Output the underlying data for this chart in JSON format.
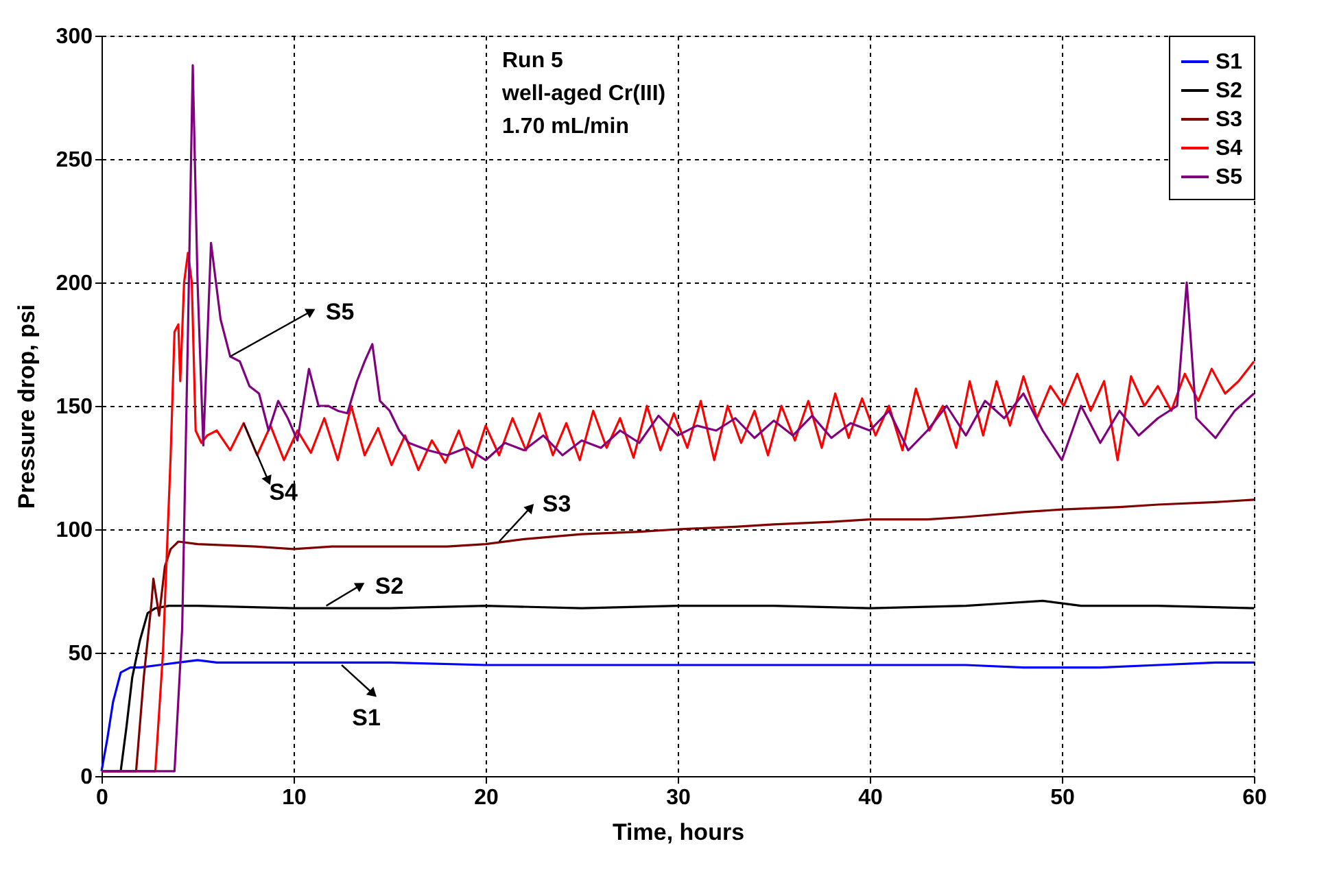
{
  "chart_data": {
    "type": "line",
    "xlabel": "Time, hours",
    "ylabel": "Pressure drop, psi",
    "xlim": [
      0,
      60
    ],
    "xticks": [
      0,
      10,
      20,
      30,
      40,
      50,
      60
    ],
    "ylim": [
      0,
      300
    ],
    "yticks": [
      0,
      50,
      100,
      150,
      200,
      250,
      300
    ],
    "grid": true,
    "legend": "top right",
    "marker": "none",
    "line_style": "solid",
    "annotations": [
      "Run 5",
      "well-aged Cr(III)",
      "1.70 mL/min",
      {
        "text": "S1",
        "x": 12.5,
        "y": 45
      },
      {
        "text": "S2",
        "x": 11.7,
        "y": 69
      },
      {
        "text": "S3",
        "x": 20.7,
        "y": 95
      },
      {
        "text": "S4",
        "x": 7.4,
        "y": 143
      },
      {
        "text": "S5",
        "x": 6.7,
        "y": 170
      }
    ],
    "series": [
      {
        "name": "S1",
        "color": "#0000ff",
        "x": [
          0,
          0.3,
          0.6,
          1.0,
          1.5,
          2,
          3,
          4,
          5,
          6,
          8,
          10,
          15,
          20,
          25,
          30,
          35,
          40,
          45,
          48,
          50,
          52,
          55,
          58,
          60
        ],
        "values": [
          2,
          15,
          30,
          42,
          44,
          44,
          45,
          46,
          47,
          46,
          46,
          46,
          46,
          45,
          45,
          45,
          45,
          45,
          45,
          44,
          44,
          44,
          45,
          46,
          46
        ]
      },
      {
        "name": "S2",
        "color": "#000000",
        "x": [
          0,
          1.0,
          1.3,
          1.6,
          2.0,
          2.4,
          2.8,
          3.5,
          5,
          10,
          15,
          20,
          25,
          30,
          35,
          40,
          45,
          47,
          49,
          51,
          55,
          60
        ],
        "values": [
          2,
          2,
          20,
          40,
          55,
          66,
          68,
          69,
          69,
          68,
          68,
          69,
          68,
          69,
          69,
          68,
          69,
          70,
          71,
          69,
          69,
          68
        ]
      },
      {
        "name": "S3",
        "color": "#800000",
        "x": [
          0,
          1.8,
          2.2,
          2.6,
          2.7,
          3.0,
          3.3,
          3.6,
          4.0,
          5,
          8,
          10,
          12,
          15,
          18,
          20,
          22,
          25,
          28,
          30,
          33,
          35,
          38,
          40,
          43,
          45,
          48,
          50,
          53,
          55,
          58,
          60
        ],
        "values": [
          2,
          2,
          40,
          70,
          80,
          65,
          85,
          92,
          95,
          94,
          93,
          92,
          93,
          93,
          93,
          94,
          96,
          98,
          99,
          100,
          101,
          102,
          103,
          104,
          104,
          105,
          107,
          108,
          109,
          110,
          111,
          112
        ]
      },
      {
        "name": "S4",
        "color": "#ff0000",
        "x": [
          0,
          2.8,
          3.2,
          3.6,
          3.8,
          4.0,
          4.1,
          4.3,
          4.5,
          4.7,
          4.9,
          5.2,
          5.5,
          6,
          6.7,
          7.4,
          8.1,
          8.8,
          9.5,
          10.2,
          10.9,
          11.6,
          12.3,
          13,
          13.7,
          14.4,
          15.1,
          15.8,
          16.5,
          17.2,
          17.9,
          18.6,
          19.3,
          20,
          20.7,
          21.4,
          22.1,
          22.8,
          23.5,
          24.2,
          24.9,
          25.6,
          26.3,
          27,
          27.7,
          28.4,
          29.1,
          29.8,
          30.5,
          31.2,
          31.9,
          32.6,
          33.3,
          34,
          34.7,
          35.4,
          36.1,
          36.8,
          37.5,
          38.2,
          38.9,
          39.6,
          40.3,
          41,
          41.7,
          42.4,
          43.1,
          43.8,
          44.5,
          45.2,
          45.9,
          46.6,
          47.3,
          48,
          48.7,
          49.4,
          50.1,
          50.8,
          51.5,
          52.2,
          52.9,
          53.6,
          54.3,
          55,
          55.7,
          56.4,
          57.1,
          57.8,
          58.5,
          59.2,
          60
        ],
        "values": [
          2,
          2,
          50,
          130,
          180,
          183,
          160,
          200,
          212,
          200,
          140,
          135,
          138,
          140,
          132,
          143,
          130,
          142,
          128,
          140,
          131,
          145,
          128,
          150,
          130,
          141,
          126,
          138,
          124,
          136,
          127,
          140,
          125,
          142,
          130,
          145,
          132,
          147,
          130,
          143,
          128,
          148,
          133,
          145,
          129,
          150,
          132,
          147,
          133,
          152,
          128,
          150,
          135,
          148,
          130,
          150,
          136,
          152,
          133,
          155,
          137,
          153,
          138,
          150,
          132,
          157,
          140,
          150,
          133,
          160,
          138,
          160,
          142,
          162,
          145,
          158,
          150,
          163,
          148,
          160,
          128,
          162,
          150,
          158,
          148,
          163,
          152,
          165,
          155,
          160,
          168
        ]
      },
      {
        "name": "S5",
        "color": "#800080",
        "x": [
          0,
          3.8,
          4.2,
          4.5,
          4.75,
          5.0,
          5.3,
          5.7,
          6.2,
          6.7,
          7.2,
          7.7,
          8.2,
          8.7,
          9.2,
          9.7,
          10.2,
          10.8,
          11.3,
          11.8,
          12.3,
          12.8,
          13.3,
          13.7,
          14.1,
          14.5,
          15,
          15.5,
          16,
          17,
          18,
          19,
          20,
          21,
          22,
          23,
          24,
          25,
          26,
          27,
          28,
          29,
          30,
          31,
          32,
          33,
          34,
          35,
          36,
          37,
          38,
          39,
          40,
          41,
          42,
          43,
          44,
          45,
          46,
          47,
          48,
          49,
          50,
          51,
          52,
          53,
          54,
          55,
          56,
          56.5,
          57,
          58,
          59,
          60
        ],
        "values": [
          2,
          2,
          60,
          180,
          288,
          200,
          134,
          216,
          185,
          170,
          168,
          158,
          155,
          140,
          152,
          145,
          136,
          165,
          150,
          150,
          148,
          147,
          160,
          168,
          175,
          152,
          148,
          140,
          135,
          132,
          130,
          133,
          128,
          135,
          132,
          138,
          130,
          136,
          133,
          140,
          135,
          146,
          138,
          142,
          140,
          145,
          137,
          144,
          138,
          146,
          137,
          143,
          140,
          148,
          132,
          140,
          150,
          138,
          152,
          145,
          155,
          140,
          128,
          150,
          135,
          148,
          138,
          145,
          150,
          200,
          145,
          137,
          148,
          155
        ]
      }
    ]
  }
}
